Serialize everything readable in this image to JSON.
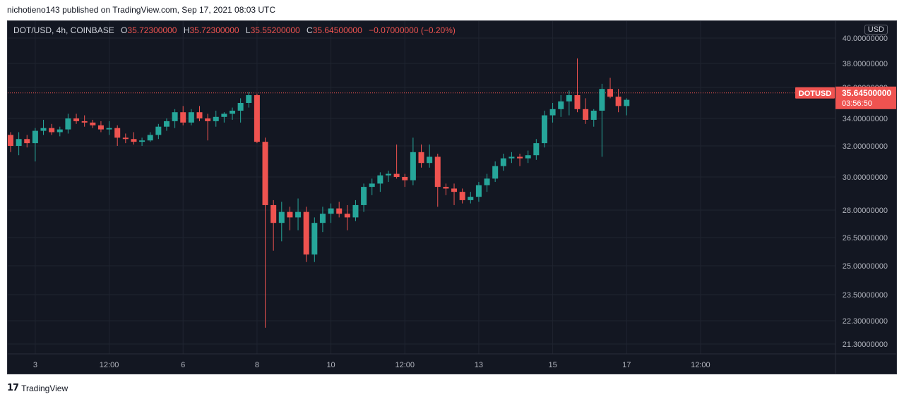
{
  "header": {
    "caption": "nichotieno143 published on TradingView.com, Sep 17, 2021 08:03 UTC"
  },
  "legend": {
    "symbol": "DOT/USD, 4h, COINBASE",
    "open_label": "O",
    "open": "35.72300000",
    "high_label": "H",
    "high": "35.72300000",
    "low_label": "L",
    "low": "35.55200000",
    "close_label": "C",
    "close": "35.64500000",
    "change": "−0.07000000 (−0.20%)"
  },
  "currency": "USD",
  "price_tag": {
    "name": "DOTUSD",
    "price": "35.64500000",
    "countdown": "03:56:50"
  },
  "footer": {
    "logo_glyph": "17",
    "brand": "TradingView"
  },
  "colors": {
    "background": "#131722",
    "up": "#26a69a",
    "down": "#ef5350",
    "grid": "#1f2430",
    "text": "#b2b5be"
  },
  "chart_data": {
    "type": "candlestick",
    "grid": true,
    "y_tick_labels": [
      "40.00000000",
      "38.00000000",
      "36.00000000",
      "34.00000000",
      "32.00000000",
      "30.00000000",
      "28.00000000",
      "26.50000000",
      "25.00000000",
      "23.50000000",
      "22.30000000",
      "21.30000000"
    ],
    "y_ticks": [
      40.0,
      38.0,
      36.0,
      34.0,
      32.0,
      30.0,
      28.0,
      26.5,
      25.0,
      23.5,
      22.3,
      21.3
    ],
    "x_tick_labels": [
      "3",
      "12:00",
      "6",
      "8",
      "10",
      "12:00",
      "13",
      "15",
      "17",
      "12:00"
    ],
    "x_tick_candle_index": [
      3,
      12,
      21,
      30,
      39,
      48,
      57,
      66,
      75,
      84
    ],
    "last_price": 35.645,
    "candles": [
      {
        "o": 32.8,
        "h": 33.0,
        "l": 31.6,
        "c": 32.0
      },
      {
        "o": 32.0,
        "h": 33.0,
        "l": 31.4,
        "c": 32.5
      },
      {
        "o": 32.5,
        "h": 32.8,
        "l": 31.9,
        "c": 32.2
      },
      {
        "o": 32.2,
        "h": 33.3,
        "l": 31.0,
        "c": 33.1
      },
      {
        "o": 33.1,
        "h": 33.9,
        "l": 32.8,
        "c": 33.3
      },
      {
        "o": 33.3,
        "h": 33.6,
        "l": 32.8,
        "c": 33.0
      },
      {
        "o": 33.0,
        "h": 33.4,
        "l": 32.7,
        "c": 33.2
      },
      {
        "o": 33.2,
        "h": 34.3,
        "l": 32.9,
        "c": 34.0
      },
      {
        "o": 34.0,
        "h": 34.3,
        "l": 33.6,
        "c": 33.8
      },
      {
        "o": 33.8,
        "h": 34.2,
        "l": 33.4,
        "c": 33.7
      },
      {
        "o": 33.7,
        "h": 33.9,
        "l": 33.3,
        "c": 33.5
      },
      {
        "o": 33.5,
        "h": 33.8,
        "l": 33.0,
        "c": 33.2
      },
      {
        "o": 33.2,
        "h": 33.8,
        "l": 32.8,
        "c": 33.3
      },
      {
        "o": 33.3,
        "h": 33.5,
        "l": 32.0,
        "c": 32.6
      },
      {
        "o": 32.6,
        "h": 32.9,
        "l": 32.2,
        "c": 32.5
      },
      {
        "o": 32.5,
        "h": 33.0,
        "l": 32.1,
        "c": 32.3
      },
      {
        "o": 32.3,
        "h": 32.6,
        "l": 32.0,
        "c": 32.4
      },
      {
        "o": 32.4,
        "h": 33.0,
        "l": 32.3,
        "c": 32.8
      },
      {
        "o": 32.8,
        "h": 33.6,
        "l": 32.5,
        "c": 33.4
      },
      {
        "o": 33.4,
        "h": 34.0,
        "l": 33.1,
        "c": 33.8
      },
      {
        "o": 33.8,
        "h": 34.6,
        "l": 33.3,
        "c": 34.4
      },
      {
        "o": 34.4,
        "h": 34.8,
        "l": 33.5,
        "c": 33.7
      },
      {
        "o": 33.7,
        "h": 34.6,
        "l": 33.5,
        "c": 34.4
      },
      {
        "o": 34.4,
        "h": 34.8,
        "l": 33.8,
        "c": 34.0
      },
      {
        "o": 34.0,
        "h": 34.3,
        "l": 32.4,
        "c": 33.8
      },
      {
        "o": 33.8,
        "h": 34.5,
        "l": 33.4,
        "c": 34.1
      },
      {
        "o": 34.1,
        "h": 34.4,
        "l": 33.7,
        "c": 34.3
      },
      {
        "o": 34.3,
        "h": 34.7,
        "l": 33.9,
        "c": 34.5
      },
      {
        "o": 34.5,
        "h": 35.3,
        "l": 33.7,
        "c": 35.0
      },
      {
        "o": 35.0,
        "h": 35.7,
        "l": 34.7,
        "c": 35.5
      },
      {
        "o": 35.5,
        "h": 35.6,
        "l": 32.2,
        "c": 32.3
      },
      {
        "o": 32.3,
        "h": 32.6,
        "l": 22.0,
        "c": 28.3
      },
      {
        "o": 28.3,
        "h": 28.6,
        "l": 25.8,
        "c": 27.3
      },
      {
        "o": 27.3,
        "h": 28.5,
        "l": 26.3,
        "c": 27.9
      },
      {
        "o": 27.9,
        "h": 28.2,
        "l": 26.9,
        "c": 27.6
      },
      {
        "o": 27.6,
        "h": 28.7,
        "l": 26.9,
        "c": 27.9
      },
      {
        "o": 27.9,
        "h": 28.2,
        "l": 25.2,
        "c": 25.6
      },
      {
        "o": 25.6,
        "h": 27.6,
        "l": 25.2,
        "c": 27.3
      },
      {
        "o": 27.3,
        "h": 28.2,
        "l": 26.8,
        "c": 27.8
      },
      {
        "o": 27.8,
        "h": 28.4,
        "l": 27.3,
        "c": 28.1
      },
      {
        "o": 28.1,
        "h": 28.5,
        "l": 27.6,
        "c": 27.8
      },
      {
        "o": 27.8,
        "h": 28.3,
        "l": 26.9,
        "c": 27.6
      },
      {
        "o": 27.6,
        "h": 28.6,
        "l": 27.4,
        "c": 28.3
      },
      {
        "o": 28.3,
        "h": 29.6,
        "l": 27.9,
        "c": 29.4
      },
      {
        "o": 29.4,
        "h": 29.9,
        "l": 28.9,
        "c": 29.6
      },
      {
        "o": 29.6,
        "h": 30.3,
        "l": 29.1,
        "c": 30.1
      },
      {
        "o": 30.1,
        "h": 30.4,
        "l": 29.7,
        "c": 30.2
      },
      {
        "o": 30.2,
        "h": 32.1,
        "l": 29.9,
        "c": 30.0
      },
      {
        "o": 30.0,
        "h": 30.2,
        "l": 29.4,
        "c": 29.8
      },
      {
        "o": 29.8,
        "h": 32.6,
        "l": 29.5,
        "c": 31.6
      },
      {
        "o": 31.6,
        "h": 32.1,
        "l": 30.6,
        "c": 30.9
      },
      {
        "o": 30.9,
        "h": 32.1,
        "l": 30.6,
        "c": 31.3
      },
      {
        "o": 31.3,
        "h": 31.5,
        "l": 28.2,
        "c": 29.4
      },
      {
        "o": 29.4,
        "h": 29.6,
        "l": 28.9,
        "c": 29.3
      },
      {
        "o": 29.3,
        "h": 29.6,
        "l": 28.3,
        "c": 29.1
      },
      {
        "o": 29.1,
        "h": 29.3,
        "l": 28.4,
        "c": 28.6
      },
      {
        "o": 28.6,
        "h": 29.1,
        "l": 28.4,
        "c": 28.8
      },
      {
        "o": 28.8,
        "h": 29.7,
        "l": 28.5,
        "c": 29.5
      },
      {
        "o": 29.5,
        "h": 30.2,
        "l": 29.1,
        "c": 29.9
      },
      {
        "o": 29.9,
        "h": 31.0,
        "l": 29.7,
        "c": 30.7
      },
      {
        "o": 30.7,
        "h": 31.5,
        "l": 30.4,
        "c": 31.2
      },
      {
        "o": 31.2,
        "h": 31.6,
        "l": 30.9,
        "c": 31.3
      },
      {
        "o": 31.3,
        "h": 31.5,
        "l": 30.7,
        "c": 31.2
      },
      {
        "o": 31.2,
        "h": 31.7,
        "l": 30.9,
        "c": 31.4
      },
      {
        "o": 31.4,
        "h": 32.5,
        "l": 31.1,
        "c": 32.2
      },
      {
        "o": 32.2,
        "h": 34.5,
        "l": 31.9,
        "c": 34.2
      },
      {
        "o": 34.2,
        "h": 35.0,
        "l": 33.7,
        "c": 34.6
      },
      {
        "o": 34.6,
        "h": 35.5,
        "l": 34.1,
        "c": 35.1
      },
      {
        "o": 35.1,
        "h": 35.8,
        "l": 34.2,
        "c": 35.5
      },
      {
        "o": 35.5,
        "h": 38.4,
        "l": 34.4,
        "c": 34.6
      },
      {
        "o": 34.6,
        "h": 35.3,
        "l": 33.6,
        "c": 33.9
      },
      {
        "o": 33.9,
        "h": 34.6,
        "l": 33.4,
        "c": 34.5
      },
      {
        "o": 34.5,
        "h": 36.3,
        "l": 31.3,
        "c": 35.9
      },
      {
        "o": 35.9,
        "h": 36.8,
        "l": 35.3,
        "c": 35.4
      },
      {
        "o": 35.4,
        "h": 35.9,
        "l": 34.4,
        "c": 34.8
      },
      {
        "o": 34.8,
        "h": 35.3,
        "l": 34.2,
        "c": 35.2
      }
    ]
  }
}
